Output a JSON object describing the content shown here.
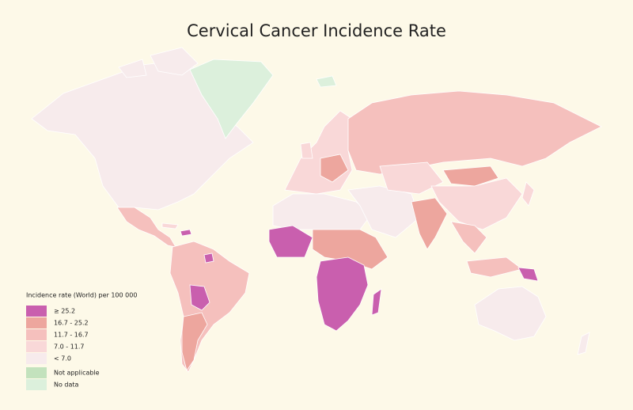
{
  "title": "Cervical Cancer Incidence Rate",
  "legend": {
    "title": "Incidence rate (World) per 100 000",
    "items": [
      {
        "label": "≥ 25.2",
        "color": "#c95fae"
      },
      {
        "label": "16.7 - 25.2",
        "color": "#eda69e"
      },
      {
        "label": "11.7 - 16.7",
        "color": "#f5c0bd"
      },
      {
        "label": "7.0 - 11.7",
        "color": "#f9d8d8"
      },
      {
        "label": "< 7.0",
        "color": "#f7ebec"
      }
    ],
    "extra": [
      {
        "label": "Not applicable",
        "color": "#c3e2bd"
      },
      {
        "label": "No data",
        "color": "#dcf0dc"
      }
    ]
  }
}
